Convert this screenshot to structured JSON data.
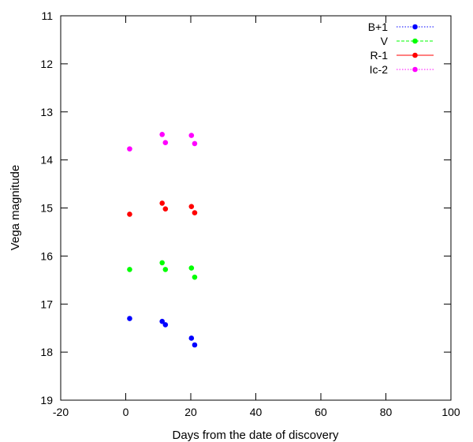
{
  "chart_data": {
    "type": "scatter",
    "xlabel": "Days from the date of discovery",
    "ylabel": "Vega magnitude",
    "xlim": [
      -20,
      100
    ],
    "ylim": [
      19,
      11
    ],
    "y_inverted": true,
    "xticks": [
      -20,
      0,
      20,
      40,
      60,
      80,
      100
    ],
    "yticks": [
      11,
      12,
      13,
      14,
      15,
      16,
      17,
      18,
      19
    ],
    "grid": false,
    "legend_position": "top-right",
    "series": [
      {
        "name": "B+1",
        "color": "#0000ff",
        "line_style": "dotted",
        "points": [
          [
            1.2,
            17.3
          ],
          [
            11.2,
            17.36
          ],
          [
            12.2,
            17.43
          ],
          [
            20.2,
            17.71
          ],
          [
            21.2,
            17.85
          ]
        ]
      },
      {
        "name": "V",
        "color": "#00ff00",
        "line_style": "dashed",
        "points": [
          [
            1.2,
            16.28
          ],
          [
            11.2,
            16.14
          ],
          [
            12.2,
            16.28
          ],
          [
            20.2,
            16.25
          ],
          [
            21.2,
            16.44
          ]
        ]
      },
      {
        "name": "R-1",
        "color": "#ff0000",
        "line_style": "solid",
        "points": [
          [
            1.2,
            15.13
          ],
          [
            11.2,
            14.9
          ],
          [
            12.2,
            15.02
          ],
          [
            20.2,
            14.97
          ],
          [
            21.2,
            15.1
          ]
        ]
      },
      {
        "name": "Ic-2",
        "color": "#ff00ff",
        "line_style": "dotted",
        "points": [
          [
            1.2,
            13.77
          ],
          [
            11.2,
            13.47
          ],
          [
            12.2,
            13.64
          ],
          [
            20.2,
            13.49
          ],
          [
            21.2,
            13.66
          ]
        ]
      }
    ]
  }
}
